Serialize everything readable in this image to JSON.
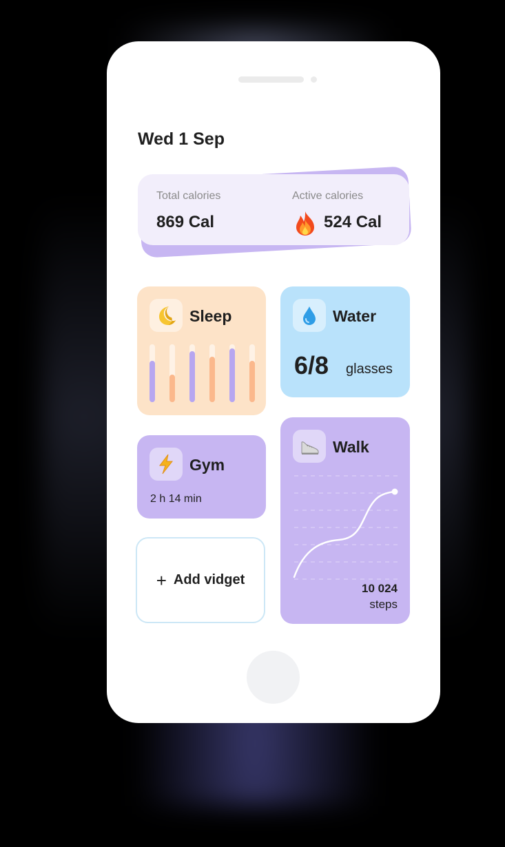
{
  "header": {
    "date": "Wed 1 Sep"
  },
  "calories": {
    "total_label": "Total calories",
    "total_value": "869 Cal",
    "active_label": "Active calories",
    "active_value": "524 Cal",
    "active_icon": "fire-icon"
  },
  "widgets": {
    "sleep": {
      "title": "Sleep",
      "icon": "moon-icon",
      "bars": [
        {
          "level": 0.72,
          "color": "#b7a6f0"
        },
        {
          "level": 0.48,
          "color": "#fbb88c"
        },
        {
          "level": 0.88,
          "color": "#b7a6f0"
        },
        {
          "level": 0.78,
          "color": "#fbb88c"
        },
        {
          "level": 0.93,
          "color": "#b7a6f0"
        },
        {
          "level": 0.72,
          "color": "#fbb88c"
        }
      ]
    },
    "water": {
      "title": "Water",
      "icon": "droplet-icon",
      "value": "6/8",
      "unit": "glasses",
      "consumed": 6,
      "target": 8
    },
    "gym": {
      "title": "Gym",
      "icon": "lightning-icon",
      "duration": "2 h 14 min"
    },
    "walk": {
      "title": "Walk",
      "icon": "sneaker-icon",
      "steps_value": "10 024",
      "steps_unit": "steps"
    },
    "add": {
      "label": "Add vidget",
      "icon": "plus-icon"
    }
  },
  "colors": {
    "lavender": "#c7b6f2",
    "peach": "#fde3c8",
    "sky": "#b9e2fb",
    "calorie_bg": "#f2eefb"
  }
}
